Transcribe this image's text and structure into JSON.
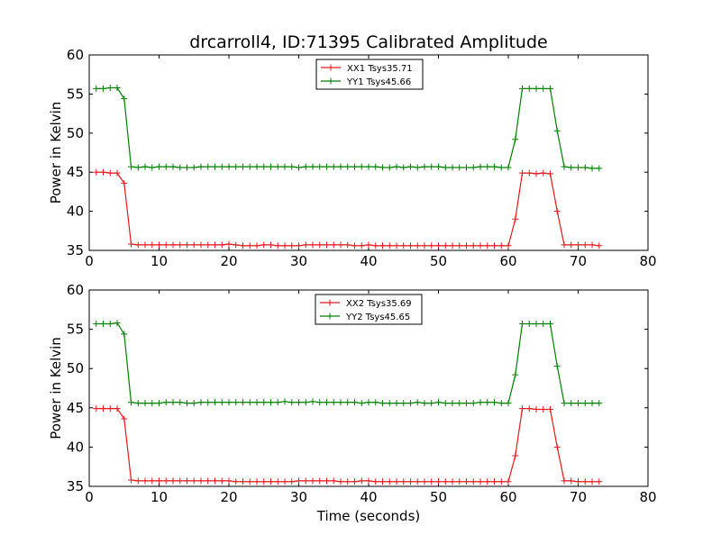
{
  "title": "drcarroll4, ID:71395 Calibrated Amplitude",
  "chart_data": [
    {
      "type": "line",
      "title": "drcarroll4, ID:71395 Calibrated Amplitude",
      "xlabel": "",
      "ylabel": "Power in Kelvin",
      "xlim": [
        0,
        80
      ],
      "ylim": [
        35,
        60
      ],
      "xticks": [
        "0",
        "10",
        "20",
        "30",
        "40",
        "50",
        "60",
        "70",
        "80"
      ],
      "yticks": [
        "35",
        "40",
        "45",
        "50",
        "55",
        "60"
      ],
      "grid": false,
      "legend_position": "top-center",
      "x": [
        1,
        2,
        3,
        4,
        5,
        6,
        7,
        8,
        9,
        10,
        11,
        12,
        13,
        14,
        15,
        16,
        17,
        18,
        19,
        20,
        21,
        22,
        23,
        24,
        25,
        26,
        27,
        28,
        29,
        30,
        31,
        32,
        33,
        34,
        35,
        36,
        37,
        38,
        39,
        40,
        41,
        42,
        43,
        44,
        45,
        46,
        47,
        48,
        49,
        50,
        51,
        52,
        53,
        54,
        55,
        56,
        57,
        58,
        59,
        60,
        61,
        62,
        63,
        64,
        65,
        66,
        67,
        68,
        69,
        70,
        71,
        72,
        73
      ],
      "series": [
        {
          "name": "XX1 Tsys35.71",
          "color": "#e41a1c",
          "values": [
            45.0,
            45.0,
            44.9,
            44.9,
            43.6,
            35.8,
            35.7,
            35.7,
            35.7,
            35.7,
            35.7,
            35.7,
            35.7,
            35.7,
            35.7,
            35.7,
            35.7,
            35.7,
            35.7,
            35.8,
            35.7,
            35.6,
            35.6,
            35.6,
            35.7,
            35.7,
            35.6,
            35.6,
            35.6,
            35.6,
            35.7,
            35.7,
            35.7,
            35.7,
            35.7,
            35.7,
            35.7,
            35.6,
            35.6,
            35.7,
            35.6,
            35.6,
            35.6,
            35.6,
            35.6,
            35.6,
            35.6,
            35.6,
            35.6,
            35.6,
            35.6,
            35.6,
            35.6,
            35.6,
            35.6,
            35.6,
            35.6,
            35.6,
            35.6,
            35.6,
            39.0,
            44.9,
            44.9,
            44.8,
            44.9,
            44.8,
            40.0,
            35.7,
            35.7,
            35.7,
            35.7,
            35.7,
            35.6
          ]
        },
        {
          "name": "YY1 Tsys45.66",
          "color": "#008000",
          "values": [
            55.7,
            55.7,
            55.8,
            55.8,
            54.4,
            45.7,
            45.6,
            45.7,
            45.6,
            45.7,
            45.7,
            45.7,
            45.6,
            45.6,
            45.6,
            45.7,
            45.7,
            45.7,
            45.7,
            45.7,
            45.7,
            45.7,
            45.7,
            45.7,
            45.7,
            45.7,
            45.7,
            45.7,
            45.7,
            45.6,
            45.7,
            45.7,
            45.7,
            45.7,
            45.7,
            45.7,
            45.7,
            45.7,
            45.7,
            45.7,
            45.7,
            45.6,
            45.6,
            45.7,
            45.6,
            45.7,
            45.6,
            45.7,
            45.7,
            45.7,
            45.6,
            45.6,
            45.6,
            45.6,
            45.6,
            45.7,
            45.7,
            45.7,
            45.6,
            45.6,
            49.2,
            55.7,
            55.7,
            55.7,
            55.7,
            55.7,
            50.3,
            45.7,
            45.6,
            45.6,
            45.6,
            45.5,
            45.5
          ]
        }
      ]
    },
    {
      "type": "line",
      "title": "",
      "xlabel": "Time (seconds)",
      "ylabel": "Power in Kelvin",
      "xlim": [
        0,
        80
      ],
      "ylim": [
        35,
        60
      ],
      "xticks": [
        "0",
        "10",
        "20",
        "30",
        "40",
        "50",
        "60",
        "70",
        "80"
      ],
      "yticks": [
        "35",
        "40",
        "45",
        "50",
        "55",
        "60"
      ],
      "grid": false,
      "legend_position": "top-center",
      "x": [
        1,
        2,
        3,
        4,
        5,
        6,
        7,
        8,
        9,
        10,
        11,
        12,
        13,
        14,
        15,
        16,
        17,
        18,
        19,
        20,
        21,
        22,
        23,
        24,
        25,
        26,
        27,
        28,
        29,
        30,
        31,
        32,
        33,
        34,
        35,
        36,
        37,
        38,
        39,
        40,
        41,
        42,
        43,
        44,
        45,
        46,
        47,
        48,
        49,
        50,
        51,
        52,
        53,
        54,
        55,
        56,
        57,
        58,
        59,
        60,
        61,
        62,
        63,
        64,
        65,
        66,
        67,
        68,
        69,
        70,
        71,
        72,
        73
      ],
      "series": [
        {
          "name": "XX2 Tsys35.69",
          "color": "#e41a1c",
          "values": [
            44.9,
            44.9,
            44.9,
            44.9,
            43.6,
            35.8,
            35.7,
            35.7,
            35.7,
            35.7,
            35.7,
            35.7,
            35.7,
            35.7,
            35.7,
            35.7,
            35.7,
            35.7,
            35.7,
            35.7,
            35.6,
            35.6,
            35.6,
            35.6,
            35.6,
            35.6,
            35.6,
            35.6,
            35.6,
            35.7,
            35.7,
            35.7,
            35.7,
            35.7,
            35.7,
            35.6,
            35.6,
            35.6,
            35.7,
            35.7,
            35.6,
            35.6,
            35.6,
            35.6,
            35.6,
            35.6,
            35.6,
            35.6,
            35.6,
            35.6,
            35.6,
            35.6,
            35.6,
            35.6,
            35.6,
            35.6,
            35.6,
            35.6,
            35.6,
            35.6,
            38.9,
            44.9,
            44.9,
            44.8,
            44.8,
            44.8,
            40.0,
            35.7,
            35.7,
            35.6,
            35.6,
            35.6,
            35.6
          ]
        },
        {
          "name": "YY2 Tsys45.65",
          "color": "#008000",
          "values": [
            55.7,
            55.7,
            55.7,
            55.8,
            54.4,
            45.7,
            45.6,
            45.6,
            45.6,
            45.6,
            45.7,
            45.7,
            45.7,
            45.6,
            45.6,
            45.7,
            45.7,
            45.7,
            45.7,
            45.7,
            45.7,
            45.7,
            45.7,
            45.7,
            45.7,
            45.7,
            45.7,
            45.8,
            45.7,
            45.7,
            45.7,
            45.8,
            45.7,
            45.7,
            45.7,
            45.7,
            45.7,
            45.7,
            45.6,
            45.7,
            45.7,
            45.6,
            45.6,
            45.6,
            45.6,
            45.6,
            45.7,
            45.6,
            45.6,
            45.7,
            45.6,
            45.6,
            45.6,
            45.6,
            45.6,
            45.7,
            45.7,
            45.7,
            45.6,
            45.6,
            49.2,
            55.7,
            55.7,
            55.7,
            55.7,
            55.7,
            50.3,
            45.6,
            45.6,
            45.6,
            45.6,
            45.6,
            45.6
          ]
        }
      ]
    }
  ]
}
